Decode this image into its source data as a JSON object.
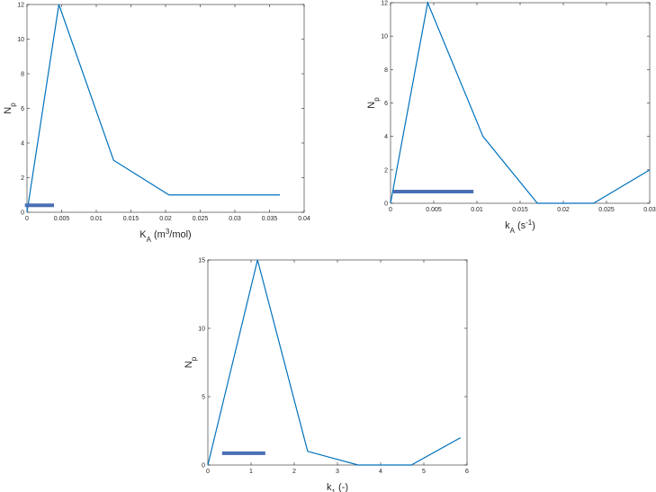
{
  "chart_data": [
    {
      "type": "line",
      "ylabel": [
        {
          "text": "N"
        },
        {
          "text": "p",
          "script": "sub"
        }
      ],
      "xlabel": [
        {
          "text": "K"
        },
        {
          "text": "A",
          "script": "sub"
        },
        {
          "text": " (m"
        },
        {
          "text": "3",
          "script": "sup"
        },
        {
          "text": "/mol)"
        }
      ],
      "x": [
        0,
        0.0046,
        0.0125,
        0.0205,
        0.0365
      ],
      "values": [
        0,
        12,
        3,
        1,
        1
      ],
      "color": "#0072bd",
      "range_bar": {
        "x": [
          -0.0003,
          0.0039
        ],
        "y": 0.4,
        "color": "#4a6fb5"
      },
      "xlim": [
        0,
        0.04
      ],
      "xticks": [
        0,
        0.005,
        0.01,
        0.015,
        0.02,
        0.025,
        0.03,
        0.035,
        0.04
      ],
      "ylim": [
        0,
        12
      ],
      "yticks": [
        0,
        2,
        4,
        6,
        8,
        10,
        12
      ]
    },
    {
      "type": "line",
      "ylabel": [
        {
          "text": "N"
        },
        {
          "text": "p",
          "script": "sub"
        }
      ],
      "xlabel": [
        {
          "text": "k"
        },
        {
          "text": "A",
          "script": "sub"
        },
        {
          "text": " (s"
        },
        {
          "text": "-1",
          "script": "sup"
        },
        {
          "text": ")"
        }
      ],
      "x": [
        0,
        0.0043,
        0.0107,
        0.017,
        0.0235,
        0.03
      ],
      "values": [
        0,
        12,
        4,
        0,
        0,
        2
      ],
      "color": "#0072bd",
      "range_bar": {
        "x": [
          0.0003,
          0.0096
        ],
        "y": 0.7,
        "color": "#4a6fb5"
      },
      "xlim": [
        0,
        0.03
      ],
      "xticks": [
        0,
        0.005,
        0.01,
        0.015,
        0.02,
        0.025,
        0.03
      ],
      "ylim": [
        0,
        12
      ],
      "yticks": [
        0,
        2,
        4,
        6,
        8,
        10,
        12
      ]
    },
    {
      "type": "line",
      "ylabel": [
        {
          "text": "N"
        },
        {
          "text": "p",
          "script": "sub"
        }
      ],
      "xlabel": [
        {
          "text": "k"
        },
        {
          "text": "1",
          "script": "sub"
        },
        {
          "text": " (-)"
        }
      ],
      "x": [
        0,
        1.15,
        2.31,
        3.48,
        4.71,
        5.85
      ],
      "values": [
        0,
        15,
        1,
        0,
        0,
        2
      ],
      "color": "#0072bd",
      "range_bar": {
        "x": [
          0.33,
          1.33
        ],
        "y": 0.86,
        "color": "#4a6fb5"
      },
      "xlim": [
        0,
        6
      ],
      "xticks": [
        0,
        1,
        2,
        3,
        4,
        5,
        6
      ],
      "ylim": [
        0,
        15
      ],
      "yticks": [
        0,
        5,
        10,
        15
      ]
    }
  ]
}
